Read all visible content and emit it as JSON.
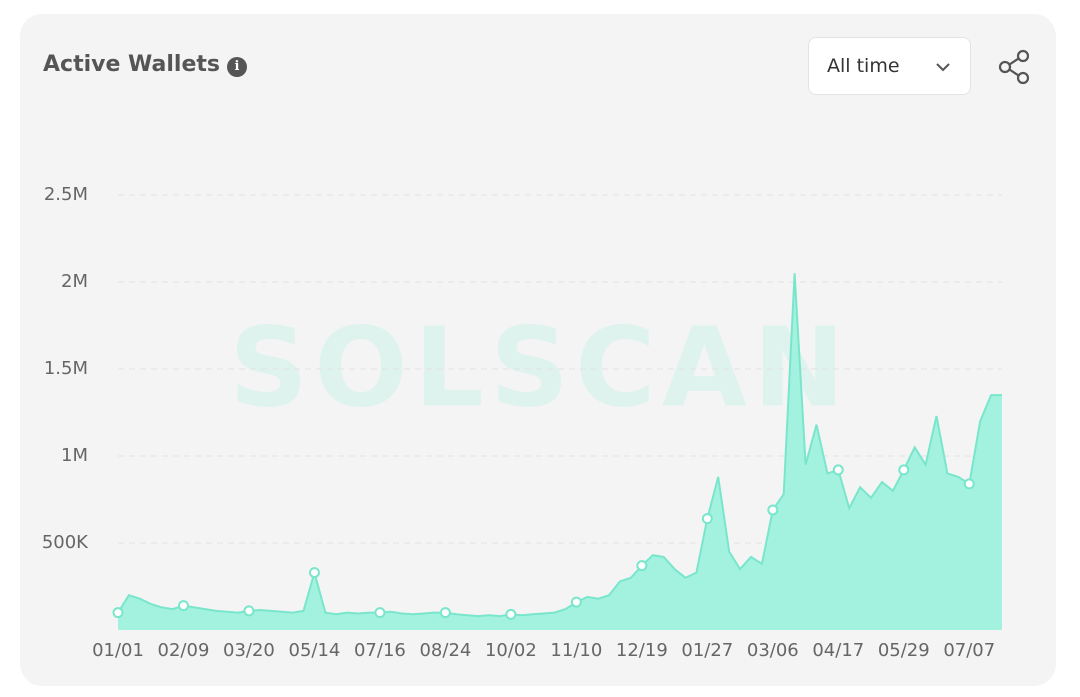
{
  "header": {
    "title": "Active Wallets",
    "dropdown": "All time"
  },
  "chart_data": {
    "type": "area",
    "watermark": "SOLSCAN",
    "categories": [
      "01/01",
      null,
      null,
      null,
      null,
      null,
      "02/09",
      null,
      null,
      null,
      null,
      null,
      "03/20",
      null,
      null,
      null,
      null,
      null,
      "05/14",
      null,
      null,
      null,
      null,
      null,
      "07/16",
      null,
      null,
      null,
      null,
      null,
      "08/24",
      null,
      null,
      null,
      null,
      null,
      "10/02",
      null,
      null,
      null,
      null,
      null,
      "11/10",
      null,
      null,
      null,
      null,
      null,
      "12/19",
      null,
      null,
      null,
      null,
      null,
      "01/27",
      null,
      null,
      null,
      null,
      null,
      "03/06",
      null,
      null,
      null,
      null,
      null,
      "04/17",
      null,
      null,
      null,
      null,
      null,
      "05/29",
      null,
      null,
      null,
      null,
      null,
      "07/07",
      null,
      null,
      null
    ],
    "values": [
      100000,
      200000,
      180000,
      150000,
      130000,
      120000,
      140000,
      130000,
      120000,
      110000,
      105000,
      100000,
      110000,
      115000,
      110000,
      105000,
      100000,
      110000,
      330000,
      100000,
      90000,
      100000,
      95000,
      100000,
      100000,
      105000,
      95000,
      90000,
      95000,
      100000,
      100000,
      90000,
      85000,
      80000,
      85000,
      80000,
      90000,
      85000,
      90000,
      95000,
      100000,
      120000,
      160000,
      190000,
      180000,
      200000,
      280000,
      300000,
      370000,
      430000,
      420000,
      350000,
      300000,
      330000,
      640000,
      880000,
      450000,
      350000,
      420000,
      380000,
      690000,
      780000,
      2050000,
      950000,
      1180000,
      900000,
      920000,
      700000,
      820000,
      760000,
      850000,
      800000,
      920000,
      1050000,
      950000,
      1230000,
      900000,
      880000,
      840000,
      1200000,
      1350000,
      1350000
    ],
    "color": "#a3f2e0",
    "line_color": "#79e6cc",
    "ylim": [
      0,
      2500000
    ],
    "yticks": [
      {
        "value": 500000,
        "label": "500K"
      },
      {
        "value": 1000000,
        "label": "1M"
      },
      {
        "value": 1500000,
        "label": "1.5M"
      },
      {
        "value": 2000000,
        "label": "2M"
      },
      {
        "value": 2500000,
        "label": "2.5M"
      }
    ],
    "grid": true
  }
}
